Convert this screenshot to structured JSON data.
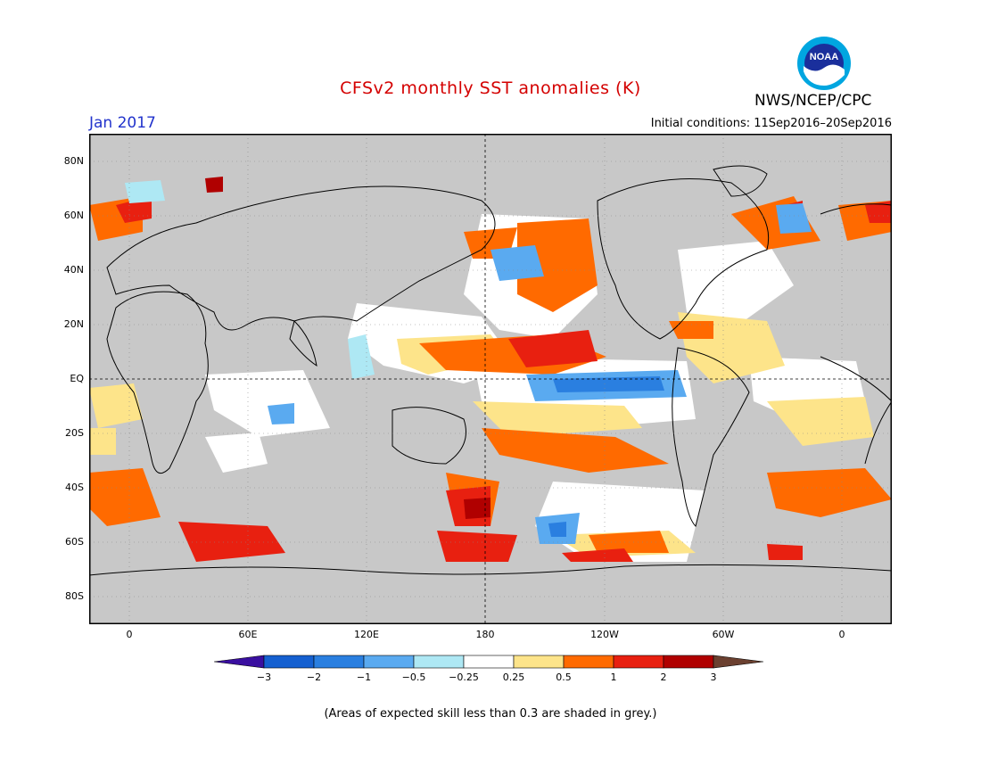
{
  "title": "CFSv2 monthly SST anomalies (K)",
  "period": "Jan 2017",
  "initial_conditions": "Initial conditions: 11Sep2016–20Sep2016",
  "agency": "NWS/NCEP/CPC",
  "logo_text": "NOAA",
  "x_ticks": [
    "0",
    "60E",
    "120E",
    "180",
    "120W",
    "60W",
    "0"
  ],
  "y_ticks": [
    "80N",
    "60N",
    "40N",
    "20N",
    "EQ",
    "20S",
    "40S",
    "60S",
    "80S"
  ],
  "colorbar": {
    "labels": [
      "−3",
      "−2",
      "−1",
      "−0.5",
      "−0.25",
      "0.25",
      "0.5",
      "1",
      "2",
      "3"
    ],
    "colors": [
      "#3a0fa0",
      "#1560d0",
      "#2a7fe0",
      "#5aaaf0",
      "#aee8f4",
      "#ffffff",
      "#fde48a",
      "#ff6a00",
      "#e82010",
      "#b00000",
      "#6b4030"
    ]
  },
  "footnote": "(Areas of expected skill less than 0.3 are shaded in grey.)",
  "colors": {
    "skill_grey": "#c8c8c8",
    "land": "#c8c8c8",
    "title": "#d40000",
    "period": "#2233cc"
  }
}
